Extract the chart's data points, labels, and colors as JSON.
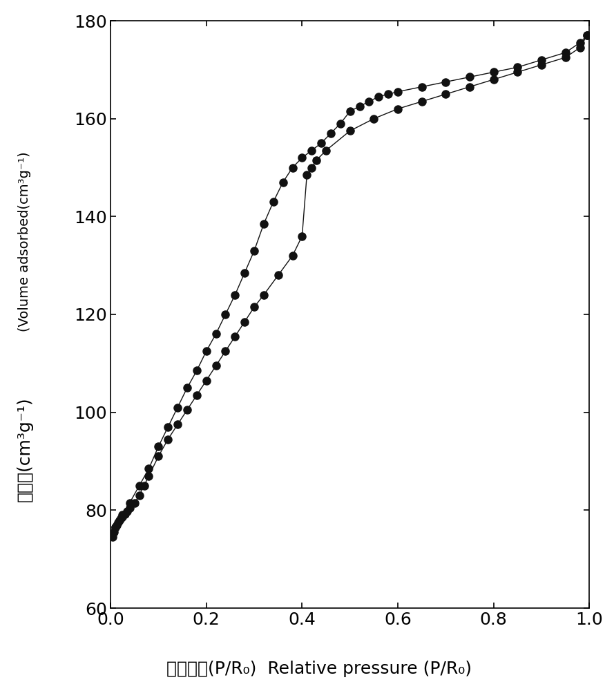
{
  "adsorption_x": [
    0.004,
    0.007,
    0.01,
    0.013,
    0.016,
    0.019,
    0.022,
    0.025,
    0.03,
    0.035,
    0.04,
    0.05,
    0.06,
    0.07,
    0.08,
    0.1,
    0.12,
    0.14,
    0.16,
    0.18,
    0.2,
    0.22,
    0.24,
    0.26,
    0.28,
    0.3,
    0.32,
    0.35,
    0.38,
    0.4,
    0.41,
    0.42,
    0.43,
    0.45,
    0.5,
    0.55,
    0.6,
    0.65,
    0.7,
    0.75,
    0.8,
    0.85,
    0.9,
    0.95,
    0.98,
    0.995
  ],
  "adsorption_y": [
    74.5,
    75.5,
    76.5,
    77.0,
    77.5,
    78.0,
    78.3,
    78.6,
    79.2,
    79.8,
    80.5,
    81.5,
    83.0,
    85.0,
    87.0,
    91.0,
    94.5,
    97.5,
    100.5,
    103.5,
    106.5,
    109.5,
    112.5,
    115.5,
    118.5,
    121.5,
    124.0,
    128.0,
    132.0,
    136.0,
    148.5,
    150.0,
    151.5,
    153.5,
    157.5,
    160.0,
    162.0,
    163.5,
    165.0,
    166.5,
    168.0,
    169.5,
    171.0,
    172.5,
    174.5,
    177.0
  ],
  "desorption_x": [
    0.995,
    0.98,
    0.95,
    0.9,
    0.85,
    0.8,
    0.75,
    0.7,
    0.65,
    0.6,
    0.58,
    0.56,
    0.54,
    0.52,
    0.5,
    0.48,
    0.46,
    0.44,
    0.42,
    0.4,
    0.38,
    0.36,
    0.34,
    0.32,
    0.3,
    0.28,
    0.26,
    0.24,
    0.22,
    0.2,
    0.18,
    0.16,
    0.14,
    0.12,
    0.1,
    0.08,
    0.06,
    0.04,
    0.025,
    0.01
  ],
  "desorption_y": [
    177.0,
    175.5,
    173.5,
    172.0,
    170.5,
    169.5,
    168.5,
    167.5,
    166.5,
    165.5,
    165.0,
    164.5,
    163.5,
    162.5,
    161.5,
    159.0,
    157.0,
    155.0,
    153.5,
    152.0,
    150.0,
    147.0,
    143.0,
    138.5,
    133.0,
    128.5,
    124.0,
    120.0,
    116.0,
    112.5,
    108.5,
    105.0,
    101.0,
    97.0,
    93.0,
    88.5,
    85.0,
    81.5,
    79.0,
    76.5
  ],
  "xlim": [
    0.0,
    1.0
  ],
  "ylim": [
    60,
    180
  ],
  "xticks": [
    0.0,
    0.2,
    0.4,
    0.6,
    0.8,
    1.0
  ],
  "yticks": [
    60,
    80,
    100,
    120,
    140,
    160,
    180
  ],
  "xlabel_chinese": "相对压力(P/R₀)",
  "xlabel_english": "Relative pressure (P/R₀)",
  "ylabel_chinese": "吸附量(cm³g⁻¹)",
  "ylabel_english": "(Volume adsorbed(cm³g⁻¹)",
  "line_color": "#111111",
  "marker_color": "#111111",
  "marker_size": 8,
  "line_width": 1.0,
  "background_color": "#ffffff",
  "tick_labelsize": 18,
  "fig_width": 8.89,
  "fig_height": 10.0,
  "dpi": 100
}
